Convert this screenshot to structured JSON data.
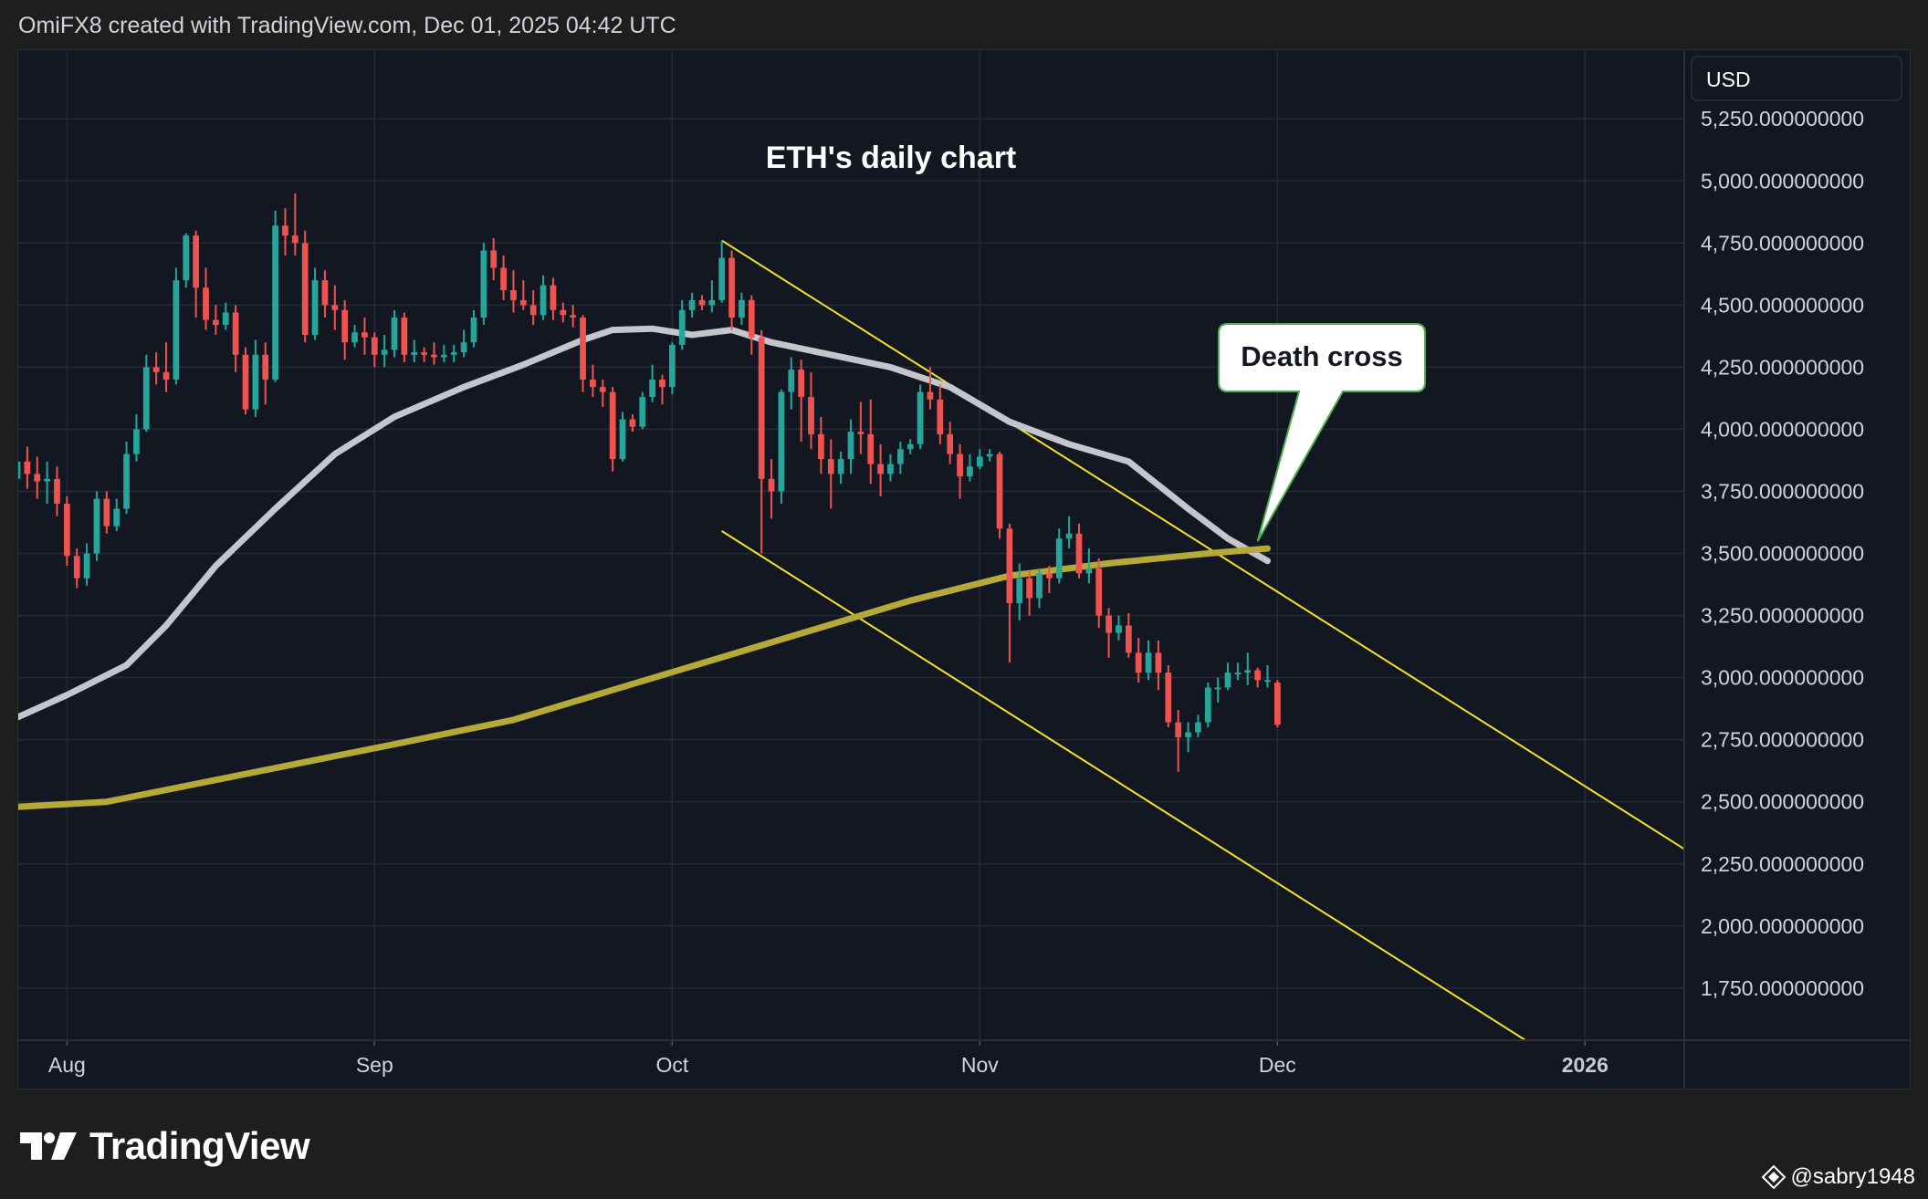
{
  "header": {
    "text": "OmiFX8 created with TradingView.com, Dec 01, 2025 04:42 UTC"
  },
  "brand": {
    "logo_text": "TradingView"
  },
  "credit": {
    "handle": "@sabry1948"
  },
  "colors": {
    "background": "#131722",
    "frame": "#1e1e1e",
    "grid": "#262a36",
    "up": "#26a69a",
    "down": "#ef5350",
    "sma50": "#c4c6cc",
    "sma200": "#b5a937",
    "channel": "#f5e22a",
    "text": "#d1d4dc"
  },
  "chart_data": {
    "type": "candlestick",
    "title": "ETH's daily chart",
    "currency": "USD",
    "y_ticks": [
      "5,250.000000000",
      "5,000.000000000",
      "4,750.000000000",
      "4,500.000000000",
      "4,250.000000000",
      "4,000.000000000",
      "3,750.000000000",
      "3,500.000000000",
      "3,250.000000000",
      "3,000.000000000",
      "2,750.000000000",
      "2,500.000000000",
      "2,250.000000000",
      "2,000.000000000",
      "1,750.000000000"
    ],
    "y_tick_values": [
      5250,
      5000,
      4750,
      4500,
      4250,
      4000,
      3750,
      3500,
      3250,
      3000,
      2750,
      2500,
      2250,
      2000,
      1750
    ],
    "x_ticks": [
      {
        "label": "Aug",
        "date": "2025-08-01",
        "bold": false
      },
      {
        "label": "Sep",
        "date": "2025-09-01",
        "bold": false
      },
      {
        "label": "Oct",
        "date": "2025-10-01",
        "bold": false
      },
      {
        "label": "Nov",
        "date": "2025-11-01",
        "bold": false
      },
      {
        "label": "Dec",
        "date": "2025-12-01",
        "bold": false
      },
      {
        "label": "2026",
        "date": "2026-01-01",
        "bold": true
      }
    ],
    "x_range": [
      "2025-07-27",
      "2026-01-11"
    ],
    "y_range": [
      1540,
      5530
    ],
    "annotation": {
      "text": "Death cross",
      "point": {
        "date": "2025-11-29",
        "value": 3520
      }
    },
    "channel_lines": [
      {
        "from": {
          "date": "2025-10-06",
          "value": 4760
        },
        "to": {
          "date": "2026-01-11",
          "value": 2310
        }
      },
      {
        "from": {
          "date": "2025-10-06",
          "value": 3590
        },
        "to": {
          "date": "2025-12-26",
          "value": 1540
        }
      }
    ],
    "series": [
      {
        "name": "SMA 50",
        "values": [
          [
            "2025-07-27",
            2840
          ],
          [
            "2025-08-01",
            2930
          ],
          [
            "2025-08-07",
            3050
          ],
          [
            "2025-08-11",
            3210
          ],
          [
            "2025-08-16",
            3450
          ],
          [
            "2025-08-22",
            3680
          ],
          [
            "2025-08-28",
            3900
          ],
          [
            "2025-09-03",
            4050
          ],
          [
            "2025-09-10",
            4170
          ],
          [
            "2025-09-16",
            4260
          ],
          [
            "2025-09-22",
            4360
          ],
          [
            "2025-09-25",
            4400
          ],
          [
            "2025-09-29",
            4405
          ],
          [
            "2025-10-03",
            4380
          ],
          [
            "2025-10-07",
            4400
          ],
          [
            "2025-10-11",
            4350
          ],
          [
            "2025-10-17",
            4300
          ],
          [
            "2025-10-23",
            4250
          ],
          [
            "2025-10-29",
            4170
          ],
          [
            "2025-11-04",
            4030
          ],
          [
            "2025-11-10",
            3940
          ],
          [
            "2025-11-16",
            3870
          ],
          [
            "2025-11-22",
            3680
          ],
          [
            "2025-11-26",
            3560
          ],
          [
            "2025-11-30",
            3470
          ]
        ]
      },
      {
        "name": "SMA 200",
        "values": [
          [
            "2025-07-27",
            2480
          ],
          [
            "2025-08-05",
            2500
          ],
          [
            "2025-08-15",
            2580
          ],
          [
            "2025-08-25",
            2660
          ],
          [
            "2025-09-04",
            2740
          ],
          [
            "2025-09-15",
            2830
          ],
          [
            "2025-09-25",
            2950
          ],
          [
            "2025-10-05",
            3070
          ],
          [
            "2025-10-15",
            3190
          ],
          [
            "2025-10-25",
            3310
          ],
          [
            "2025-11-04",
            3410
          ],
          [
            "2025-11-14",
            3460
          ],
          [
            "2025-11-24",
            3500
          ],
          [
            "2025-11-30",
            3520
          ]
        ]
      }
    ],
    "candles": [
      [
        "2025-07-27",
        3800,
        3870,
        3750,
        3920
      ],
      [
        "2025-07-28",
        3870,
        3820,
        3760,
        3930
      ],
      [
        "2025-07-29",
        3820,
        3790,
        3720,
        3890
      ],
      [
        "2025-07-30",
        3790,
        3800,
        3700,
        3870
      ],
      [
        "2025-07-31",
        3800,
        3700,
        3650,
        3850
      ],
      [
        "2025-08-01",
        3700,
        3490,
        3450,
        3730
      ],
      [
        "2025-08-02",
        3490,
        3400,
        3360,
        3520
      ],
      [
        "2025-08-03",
        3400,
        3500,
        3370,
        3540
      ],
      [
        "2025-08-04",
        3500,
        3720,
        3470,
        3750
      ],
      [
        "2025-08-05",
        3720,
        3610,
        3580,
        3750
      ],
      [
        "2025-08-06",
        3610,
        3680,
        3590,
        3720
      ],
      [
        "2025-08-07",
        3680,
        3900,
        3660,
        3950
      ],
      [
        "2025-08-08",
        3900,
        4000,
        3870,
        4060
      ],
      [
        "2025-08-09",
        4000,
        4250,
        3990,
        4300
      ],
      [
        "2025-08-10",
        4250,
        4230,
        4180,
        4310
      ],
      [
        "2025-08-11",
        4230,
        4200,
        4150,
        4350
      ],
      [
        "2025-08-12",
        4200,
        4600,
        4180,
        4650
      ],
      [
        "2025-08-13",
        4600,
        4780,
        4570,
        4790
      ],
      [
        "2025-08-14",
        4780,
        4570,
        4450,
        4800
      ],
      [
        "2025-08-15",
        4570,
        4440,
        4400,
        4650
      ],
      [
        "2025-08-16",
        4440,
        4420,
        4380,
        4500
      ],
      [
        "2025-08-17",
        4420,
        4470,
        4400,
        4510
      ],
      [
        "2025-08-18",
        4470,
        4300,
        4230,
        4500
      ],
      [
        "2025-08-19",
        4300,
        4080,
        4060,
        4330
      ],
      [
        "2025-08-20",
        4080,
        4300,
        4050,
        4360
      ],
      [
        "2025-08-21",
        4300,
        4200,
        4100,
        4350
      ],
      [
        "2025-08-22",
        4200,
        4820,
        4190,
        4880
      ],
      [
        "2025-08-23",
        4820,
        4780,
        4700,
        4890
      ],
      [
        "2025-08-24",
        4780,
        4750,
        4700,
        4950
      ],
      [
        "2025-08-25",
        4750,
        4380,
        4350,
        4800
      ],
      [
        "2025-08-26",
        4380,
        4600,
        4360,
        4650
      ],
      [
        "2025-08-27",
        4600,
        4500,
        4450,
        4640
      ],
      [
        "2025-08-28",
        4500,
        4480,
        4400,
        4580
      ],
      [
        "2025-08-29",
        4480,
        4350,
        4280,
        4520
      ],
      [
        "2025-08-30",
        4350,
        4390,
        4330,
        4420
      ],
      [
        "2025-08-31",
        4390,
        4370,
        4300,
        4450
      ],
      [
        "2025-09-01",
        4370,
        4300,
        4250,
        4390
      ],
      [
        "2025-09-02",
        4300,
        4320,
        4250,
        4380
      ],
      [
        "2025-09-03",
        4320,
        4450,
        4290,
        4480
      ],
      [
        "2025-09-04",
        4450,
        4300,
        4270,
        4470
      ],
      [
        "2025-09-05",
        4300,
        4310,
        4270,
        4360
      ],
      [
        "2025-09-06",
        4310,
        4300,
        4270,
        4330
      ],
      [
        "2025-09-07",
        4300,
        4290,
        4260,
        4350
      ],
      [
        "2025-09-08",
        4290,
        4300,
        4270,
        4340
      ],
      [
        "2025-09-09",
        4300,
        4310,
        4270,
        4340
      ],
      [
        "2025-09-10",
        4310,
        4350,
        4290,
        4400
      ],
      [
        "2025-09-11",
        4350,
        4450,
        4330,
        4480
      ],
      [
        "2025-09-12",
        4450,
        4720,
        4420,
        4750
      ],
      [
        "2025-09-13",
        4720,
        4650,
        4600,
        4770
      ],
      [
        "2025-09-14",
        4650,
        4560,
        4520,
        4700
      ],
      [
        "2025-09-15",
        4560,
        4520,
        4470,
        4640
      ],
      [
        "2025-09-16",
        4520,
        4500,
        4480,
        4600
      ],
      [
        "2025-09-17",
        4500,
        4460,
        4420,
        4560
      ],
      [
        "2025-09-18",
        4460,
        4580,
        4440,
        4620
      ],
      [
        "2025-09-19",
        4580,
        4480,
        4440,
        4610
      ],
      [
        "2025-09-20",
        4480,
        4460,
        4430,
        4510
      ],
      [
        "2025-09-21",
        4460,
        4450,
        4410,
        4500
      ],
      [
        "2025-09-22",
        4450,
        4200,
        4150,
        4460
      ],
      [
        "2025-09-23",
        4200,
        4170,
        4130,
        4260
      ],
      [
        "2025-09-24",
        4170,
        4150,
        4090,
        4200
      ],
      [
        "2025-09-25",
        4150,
        3880,
        3830,
        4170
      ],
      [
        "2025-09-26",
        3880,
        4040,
        3870,
        4070
      ],
      [
        "2025-09-27",
        4040,
        4010,
        3990,
        4060
      ],
      [
        "2025-09-28",
        4010,
        4130,
        4000,
        4150
      ],
      [
        "2025-09-29",
        4130,
        4200,
        4110,
        4260
      ],
      [
        "2025-09-30",
        4200,
        4170,
        4100,
        4220
      ],
      [
        "2025-10-01",
        4170,
        4340,
        4140,
        4350
      ],
      [
        "2025-10-02",
        4340,
        4480,
        4320,
        4520
      ],
      [
        "2025-10-03",
        4480,
        4520,
        4450,
        4550
      ],
      [
        "2025-10-04",
        4520,
        4500,
        4480,
        4540
      ],
      [
        "2025-10-05",
        4500,
        4520,
        4470,
        4600
      ],
      [
        "2025-10-06",
        4520,
        4690,
        4510,
        4760
      ],
      [
        "2025-10-07",
        4690,
        4450,
        4400,
        4720
      ],
      [
        "2025-10-08",
        4450,
        4520,
        4420,
        4550
      ],
      [
        "2025-10-09",
        4520,
        4370,
        4300,
        4540
      ],
      [
        "2025-10-10",
        4370,
        3800,
        3500,
        4400
      ],
      [
        "2025-10-11",
        3800,
        3750,
        3640,
        3880
      ],
      [
        "2025-10-12",
        3750,
        4150,
        3700,
        4160
      ],
      [
        "2025-10-13",
        4150,
        4240,
        4080,
        4290
      ],
      [
        "2025-10-14",
        4240,
        4130,
        3950,
        4280
      ],
      [
        "2025-10-15",
        4130,
        3980,
        3920,
        4230
      ],
      [
        "2025-10-16",
        3980,
        3880,
        3820,
        4050
      ],
      [
        "2025-10-17",
        3880,
        3820,
        3680,
        3960
      ],
      [
        "2025-10-18",
        3820,
        3880,
        3780,
        3910
      ],
      [
        "2025-10-19",
        3880,
        3990,
        3820,
        4040
      ],
      [
        "2025-10-20",
        3990,
        3980,
        3900,
        4110
      ],
      [
        "2025-10-21",
        3980,
        3860,
        3780,
        4120
      ],
      [
        "2025-10-22",
        3860,
        3820,
        3730,
        3940
      ],
      [
        "2025-10-23",
        3820,
        3860,
        3790,
        3900
      ],
      [
        "2025-10-24",
        3860,
        3920,
        3820,
        3950
      ],
      [
        "2025-10-25",
        3920,
        3940,
        3900,
        3960
      ],
      [
        "2025-10-26",
        3940,
        4150,
        3920,
        4180
      ],
      [
        "2025-10-27",
        4150,
        4120,
        4080,
        4250
      ],
      [
        "2025-10-28",
        4120,
        3980,
        3940,
        4180
      ],
      [
        "2025-10-29",
        3980,
        3900,
        3860,
        4030
      ],
      [
        "2025-10-30",
        3900,
        3810,
        3720,
        3940
      ],
      [
        "2025-10-31",
        3810,
        3850,
        3790,
        3900
      ],
      [
        "2025-11-01",
        3850,
        3890,
        3840,
        3920
      ],
      [
        "2025-11-02",
        3890,
        3900,
        3870,
        3920
      ],
      [
        "2025-11-03",
        3900,
        3600,
        3560,
        3910
      ],
      [
        "2025-11-04",
        3600,
        3300,
        3060,
        3620
      ],
      [
        "2025-11-05",
        3300,
        3400,
        3230,
        3460
      ],
      [
        "2025-11-06",
        3400,
        3320,
        3250,
        3430
      ],
      [
        "2025-11-07",
        3320,
        3420,
        3280,
        3440
      ],
      [
        "2025-11-08",
        3420,
        3400,
        3340,
        3450
      ],
      [
        "2025-11-09",
        3400,
        3560,
        3380,
        3600
      ],
      [
        "2025-11-10",
        3560,
        3580,
        3520,
        3650
      ],
      [
        "2025-11-11",
        3580,
        3420,
        3400,
        3620
      ],
      [
        "2025-11-12",
        3420,
        3440,
        3380,
        3520
      ],
      [
        "2025-11-13",
        3440,
        3250,
        3200,
        3480
      ],
      [
        "2025-11-14",
        3250,
        3180,
        3080,
        3280
      ],
      [
        "2025-11-15",
        3180,
        3210,
        3150,
        3250
      ],
      [
        "2025-11-16",
        3210,
        3100,
        3080,
        3260
      ],
      [
        "2025-11-17",
        3100,
        3020,
        2980,
        3160
      ],
      [
        "2025-11-18",
        3020,
        3100,
        2990,
        3150
      ],
      [
        "2025-11-19",
        3100,
        3020,
        2950,
        3150
      ],
      [
        "2025-11-20",
        3020,
        2820,
        2800,
        3050
      ],
      [
        "2025-11-21",
        2820,
        2760,
        2620,
        2870
      ],
      [
        "2025-11-22",
        2760,
        2780,
        2700,
        2820
      ],
      [
        "2025-11-23",
        2780,
        2820,
        2760,
        2850
      ],
      [
        "2025-11-24",
        2820,
        2960,
        2800,
        2980
      ],
      [
        "2025-11-25",
        2960,
        2960,
        2900,
        3000
      ],
      [
        "2025-11-26",
        2960,
        3020,
        2950,
        3060
      ],
      [
        "2025-11-27",
        3020,
        3020,
        2990,
        3060
      ],
      [
        "2025-11-28",
        3020,
        3030,
        2970,
        3100
      ],
      [
        "2025-11-29",
        3030,
        2990,
        2960,
        3040
      ],
      [
        "2025-11-30",
        2990,
        2990,
        2960,
        3050
      ],
      [
        "2025-12-01",
        2980,
        2810,
        2800,
        2990
      ]
    ]
  }
}
